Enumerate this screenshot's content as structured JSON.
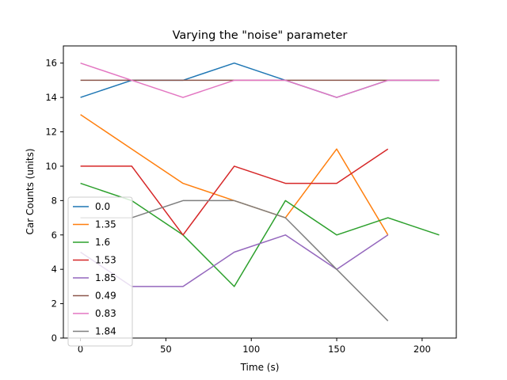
{
  "chart_data": {
    "type": "line",
    "title": "Varying the \"noise\" parameter",
    "xlabel": "Time (s)",
    "ylabel": "Car Counts (units)",
    "xlim": [
      -10,
      220
    ],
    "ylim": [
      0,
      17
    ],
    "xticks": [
      0,
      50,
      100,
      150,
      200
    ],
    "yticks": [
      0,
      2,
      4,
      6,
      8,
      10,
      12,
      14,
      16
    ],
    "grid": false,
    "legend_position": "lower-left",
    "series": [
      {
        "name": "0.0",
        "color": "#1f77b4",
        "x": [
          0,
          30,
          60,
          90,
          120,
          150,
          180,
          210
        ],
        "y": [
          14,
          15,
          15,
          16,
          15,
          14,
          15,
          15
        ]
      },
      {
        "name": "1.35",
        "color": "#ff7f0e",
        "x": [
          0,
          30,
          60,
          90,
          120,
          150,
          180
        ],
        "y": [
          13,
          11,
          9,
          8,
          7,
          11,
          6
        ]
      },
      {
        "name": "1.6",
        "color": "#2ca02c",
        "x": [
          0,
          30,
          60,
          90,
          120,
          150,
          180,
          210
        ],
        "y": [
          9,
          8,
          6,
          3,
          8,
          6,
          7,
          6
        ]
      },
      {
        "name": "1.53",
        "color": "#d62728",
        "x": [
          0,
          30,
          60,
          90,
          120,
          150,
          180
        ],
        "y": [
          10,
          10,
          6,
          10,
          9,
          9,
          11
        ]
      },
      {
        "name": "1.85",
        "color": "#9467bd",
        "x": [
          0,
          30,
          60,
          90,
          120,
          150,
          180
        ],
        "y": [
          5,
          3,
          3,
          5,
          6,
          4,
          6
        ]
      },
      {
        "name": "0.49",
        "color": "#8c564b",
        "x": [
          0,
          30,
          60,
          90,
          120,
          150,
          180,
          210
        ],
        "y": [
          15,
          15,
          15,
          15,
          15,
          15,
          15,
          15
        ]
      },
      {
        "name": "0.83",
        "color": "#e377c2",
        "x": [
          0,
          30,
          60,
          90,
          120,
          150,
          180,
          210
        ],
        "y": [
          16,
          15,
          14,
          15,
          15,
          14,
          15,
          15
        ]
      },
      {
        "name": "1.84",
        "color": "#7f7f7f",
        "x": [
          0,
          30,
          60,
          90,
          120,
          150,
          180
        ],
        "y": [
          7,
          7,
          8,
          8,
          7,
          4,
          1
        ]
      }
    ]
  }
}
